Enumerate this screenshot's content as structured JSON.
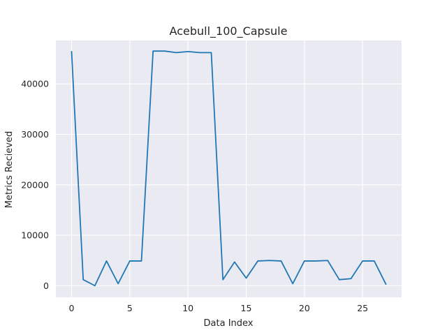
{
  "chart_data": {
    "type": "line",
    "title": "Acebull_100_Capsule",
    "xlabel": "Data Index",
    "ylabel": "Metrics Recieved",
    "xlim": [
      -1.35,
      28.35
    ],
    "ylim": [
      -2300,
      48600
    ],
    "xticks": [
      0,
      5,
      10,
      15,
      20,
      25
    ],
    "yticks": [
      0,
      10000,
      20000,
      30000,
      40000
    ],
    "grid": true,
    "series": [
      {
        "color": "#1f77b4",
        "x": [
          0,
          1,
          2,
          3,
          4,
          5,
          6,
          7,
          8,
          9,
          10,
          11,
          12,
          13,
          14,
          15,
          16,
          17,
          18,
          19,
          20,
          21,
          22,
          23,
          24,
          25,
          26,
          27
        ],
        "y": [
          46400,
          1200,
          0,
          4900,
          400,
          4900,
          4900,
          46500,
          46500,
          46200,
          46400,
          46200,
          46200,
          1200,
          4700,
          1500,
          4900,
          5000,
          4900,
          400,
          4900,
          4900,
          5000,
          1200,
          1400,
          4900,
          4900,
          300
        ]
      }
    ]
  }
}
